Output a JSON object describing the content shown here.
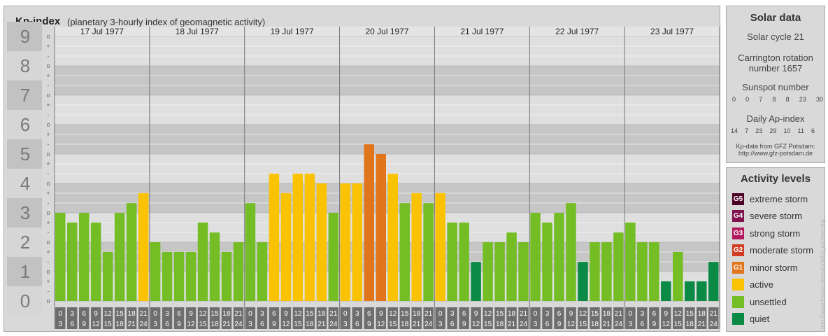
{
  "header": {
    "title": "Kp-index",
    "subtitle": "(planetary 3-hourly index of geomagnetic activity)"
  },
  "chart_data": {
    "type": "bar",
    "ylim": [
      0,
      9
    ],
    "y_tick_labels": [
      "0",
      "1",
      "2",
      "3",
      "4",
      "5",
      "6",
      "7",
      "8",
      "9"
    ],
    "minor_marks": [
      "-",
      "o",
      "+"
    ],
    "days": [
      "17 Jul 1977",
      "18 Jul 1977",
      "19 Jul 1977",
      "20 Jul 1977",
      "21 Jul 1977",
      "22 Jul 1977",
      "23 Jul 1977"
    ],
    "hour_start_labels": [
      "0",
      "3",
      "6",
      "9",
      "12",
      "15",
      "18",
      "21"
    ],
    "hour_end_labels": [
      "3",
      "6",
      "9",
      "12",
      "15",
      "18",
      "21",
      "24"
    ],
    "values": [
      3,
      2.67,
      3,
      2.67,
      1.67,
      3,
      3.33,
      3.67,
      2,
      1.67,
      1.67,
      1.67,
      2.67,
      2.33,
      1.67,
      2,
      3.33,
      2,
      4.33,
      3.67,
      4.33,
      4.33,
      4,
      3,
      4,
      4,
      5.33,
      5,
      4.33,
      3.33,
      3.67,
      3.33,
      3.67,
      2.67,
      2.67,
      1.33,
      2,
      2,
      2.33,
      2,
      3,
      2.67,
      3,
      3.33,
      1.33,
      2,
      2,
      2.33,
      2.67,
      2,
      2,
      0.67,
      1.67,
      0.67,
      0.67,
      1.33
    ],
    "activity_levels": [
      "unsettled",
      "unsettled",
      "unsettled",
      "unsettled",
      "unsettled",
      "unsettled",
      "unsettled",
      "active",
      "unsettled",
      "unsettled",
      "unsettled",
      "unsettled",
      "unsettled",
      "unsettled",
      "unsettled",
      "unsettled",
      "unsettled",
      "unsettled",
      "active",
      "active",
      "active",
      "active",
      "active",
      "unsettled",
      "active",
      "active",
      "minor storm",
      "minor storm",
      "active",
      "unsettled",
      "active",
      "unsettled",
      "active",
      "unsettled",
      "unsettled",
      "quiet",
      "unsettled",
      "unsettled",
      "unsettled",
      "unsettled",
      "unsettled",
      "unsettled",
      "unsettled",
      "unsettled",
      "quiet",
      "unsettled",
      "unsettled",
      "unsettled",
      "unsettled",
      "unsettled",
      "unsettled",
      "quiet",
      "unsettled",
      "quiet",
      "quiet",
      "quiet"
    ]
  },
  "solar": {
    "title": "Solar data",
    "cycle": "Solar cycle 21",
    "carrington_line1": "Carrington rotation",
    "carrington_line2": "number 1657",
    "sunspot_title": "Sunspot number",
    "sunspot_values": [
      "0",
      "0",
      "7",
      "8",
      "8",
      "23",
      "30"
    ],
    "ap_title": "Daily Ap-index",
    "ap_values": [
      "14",
      "7",
      "23",
      "29",
      "10",
      "11",
      "6"
    ],
    "source_line1": "Kp-data from GFZ Potsdam:",
    "source_line2": "http://www.gfz-potsdam.de"
  },
  "activity": {
    "title": "Activity levels",
    "levels": [
      {
        "badge": "G5",
        "label": "extreme storm",
        "color": "#4d0026"
      },
      {
        "badge": "G4",
        "label": "severe storm",
        "color": "#80134d"
      },
      {
        "badge": "G3",
        "label": "strong storm",
        "color": "#b3195e"
      },
      {
        "badge": "G2",
        "label": "moderate storm",
        "color": "#d13a23"
      },
      {
        "badge": "G1",
        "label": "minor storm",
        "color": "#e0751b"
      },
      {
        "badge": "",
        "label": "active",
        "color": "#f9c203"
      },
      {
        "badge": "",
        "label": "unsettled",
        "color": "#74bd24"
      },
      {
        "badge": "",
        "label": "quiet",
        "color": "#0a8a45"
      }
    ]
  },
  "watermark": "http://www.ftevsie.de/euforal/hp_archive.php"
}
